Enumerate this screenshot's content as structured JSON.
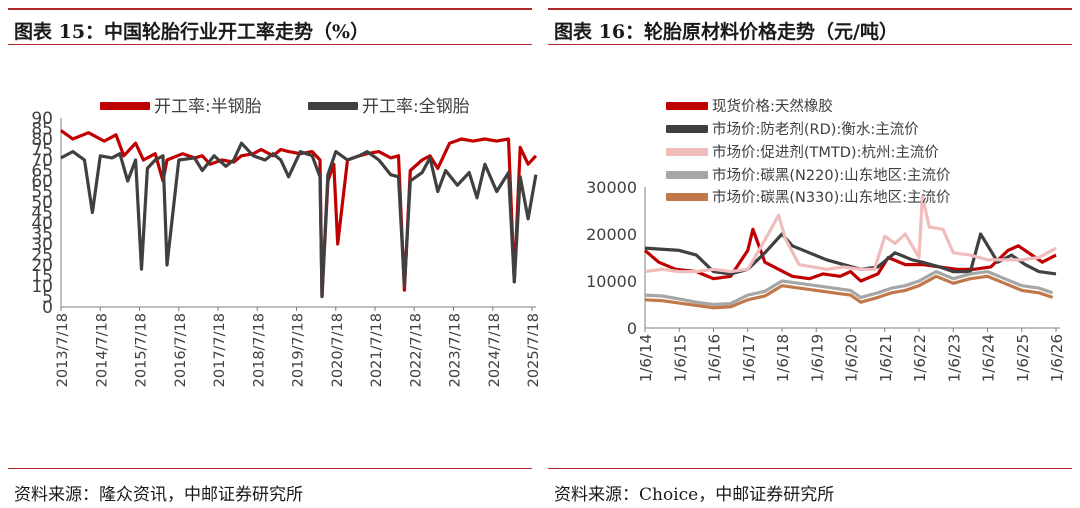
{
  "left": {
    "caption": "图表 15：中国轮胎行业开工率走势（%）",
    "source": "资料来源：隆众资讯，中邮证券研究所"
  },
  "right": {
    "caption": "图表 16：轮胎原材料价格走势（元/吨）",
    "source": "资料来源：Choice，中邮证券研究所"
  },
  "chart_data": [
    {
      "type": "line",
      "title": "",
      "ylim": [
        0,
        90
      ],
      "yticks": [
        "0",
        "5",
        "10",
        "15",
        "20",
        "25",
        "30",
        "35",
        "40",
        "45",
        "50",
        "55",
        "60",
        "65",
        "70",
        "75",
        "80",
        "85",
        "90"
      ],
      "x_tick_labels": [
        "2013/7/18",
        "2014/7/18",
        "2015/7/18",
        "2016/7/18",
        "2017/7/18",
        "2018/7/18",
        "2019/7/18",
        "2020/7/18",
        "2021/7/18",
        "2022/7/18",
        "2023/7/18",
        "2024/7/18",
        "2025/7/18"
      ],
      "legend_position": "top",
      "series": [
        {
          "name": "开工率:半钢胎",
          "color": "#c00000",
          "x": [
            2013.5,
            2013.8,
            2014.2,
            2014.6,
            2014.9,
            2015.1,
            2015.4,
            2015.6,
            2015.9,
            2016.1,
            2016.2,
            2016.6,
            2016.9,
            2017.1,
            2017.3,
            2017.6,
            2017.9,
            2018.1,
            2018.4,
            2018.6,
            2018.9,
            2019.1,
            2019.3,
            2019.6,
            2019.9,
            2020.1,
            2020.15,
            2020.3,
            2020.45,
            2020.55,
            2020.8,
            2021.1,
            2021.3,
            2021.6,
            2021.9,
            2022.1,
            2022.25,
            2022.4,
            2022.7,
            2022.9,
            2023.1,
            2023.4,
            2023.7,
            2024.0,
            2024.3,
            2024.6,
            2024.9,
            2025.05,
            2025.2,
            2025.4,
            2025.6
          ],
          "y": [
            84,
            80,
            83,
            79,
            82,
            72,
            78,
            70,
            73,
            60,
            70,
            73,
            71,
            72,
            68,
            70,
            69,
            72,
            73,
            75,
            72,
            75,
            74,
            73,
            74,
            70,
            5,
            60,
            68,
            30,
            70,
            72,
            73,
            74,
            71,
            72,
            8,
            65,
            70,
            72,
            66,
            78,
            80,
            79,
            80,
            79,
            80,
            12,
            76,
            68,
            72
          ]
        },
        {
          "name": "开工率:全钢胎",
          "color": "#404040",
          "x": [
            2013.5,
            2013.8,
            2014.1,
            2014.3,
            2014.5,
            2014.8,
            2015.0,
            2015.2,
            2015.4,
            2015.55,
            2015.7,
            2015.9,
            2016.1,
            2016.2,
            2016.5,
            2016.9,
            2017.1,
            2017.4,
            2017.7,
            2017.9,
            2018.1,
            2018.4,
            2018.7,
            2018.9,
            2019.1,
            2019.3,
            2019.6,
            2019.9,
            2020.1,
            2020.15,
            2020.3,
            2020.5,
            2020.8,
            2021.1,
            2021.3,
            2021.6,
            2021.9,
            2022.1,
            2022.25,
            2022.4,
            2022.7,
            2022.9,
            2023.1,
            2023.3,
            2023.6,
            2023.9,
            2024.1,
            2024.3,
            2024.6,
            2024.9,
            2025.05,
            2025.2,
            2025.4,
            2025.6
          ],
          "y": [
            71,
            74,
            70,
            45,
            72,
            71,
            73,
            60,
            70,
            18,
            66,
            70,
            72,
            20,
            70,
            71,
            65,
            72,
            67,
            70,
            78,
            72,
            70,
            73,
            70,
            62,
            74,
            72,
            62,
            5,
            63,
            74,
            70,
            72,
            74,
            70,
            63,
            62,
            10,
            60,
            64,
            71,
            55,
            65,
            58,
            64,
            52,
            68,
            55,
            64,
            12,
            62,
            42,
            63
          ]
        }
      ]
    },
    {
      "type": "line",
      "title": "",
      "ylim": [
        0,
        30000
      ],
      "yticks": [
        "0",
        "10000",
        "20000",
        "30000"
      ],
      "x_tick_labels": [
        "1/6/14",
        "1/6/15",
        "1/6/16",
        "1/6/17",
        "1/6/18",
        "1/6/19",
        "1/6/20",
        "1/6/21",
        "1/6/22",
        "1/6/23",
        "1/6/24",
        "1/6/25",
        "1/6/26"
      ],
      "legend_position": "top",
      "series": [
        {
          "name": "现货价格:天然橡胶",
          "color": "#c00000",
          "x": [
            2014.0,
            2014.4,
            2014.9,
            2015.5,
            2016.0,
            2016.5,
            2017.0,
            2017.15,
            2017.5,
            2017.9,
            2018.3,
            2018.8,
            2019.2,
            2019.7,
            2020.0,
            2020.3,
            2020.8,
            2021.1,
            2021.6,
            2022.1,
            2022.6,
            2023.1,
            2023.6,
            2024.1,
            2024.6,
            2024.9,
            2025.2,
            2025.6,
            2026.0
          ],
          "y": [
            16500,
            14000,
            12500,
            12000,
            10500,
            11000,
            16500,
            21000,
            14000,
            12500,
            11000,
            10500,
            11500,
            11000,
            12000,
            10000,
            11500,
            15000,
            13500,
            13500,
            13000,
            12500,
            12500,
            13000,
            16500,
            17500,
            16000,
            14000,
            15500
          ]
        },
        {
          "name": "市场价:防老剂(RD):衡水:主流价",
          "color": "#404040",
          "x": [
            2014.0,
            2015.0,
            2015.5,
            2016.0,
            2016.5,
            2017.0,
            2017.5,
            2018.0,
            2018.3,
            2018.8,
            2019.3,
            2019.8,
            2020.3,
            2020.8,
            2021.3,
            2021.8,
            2022.1,
            2022.6,
            2023.0,
            2023.5,
            2023.8,
            2024.3,
            2024.7,
            2025.1,
            2025.5,
            2026.0
          ],
          "y": [
            17000,
            16500,
            15500,
            12000,
            11500,
            12500,
            16000,
            20000,
            17500,
            16000,
            14500,
            13500,
            12500,
            13000,
            16000,
            14500,
            14000,
            13000,
            12000,
            12000,
            20000,
            14000,
            15500,
            13500,
            12000,
            11500
          ]
        },
        {
          "name": "市场价:促进剂(TMTD):杭州:主流价",
          "color": "#f0bcbc",
          "x": [
            2014.0,
            2014.5,
            2015.0,
            2015.5,
            2016.0,
            2016.5,
            2017.0,
            2017.6,
            2017.9,
            2018.1,
            2018.5,
            2018.9,
            2019.3,
            2019.8,
            2020.3,
            2020.7,
            2021.0,
            2021.3,
            2021.6,
            2022.0,
            2022.1,
            2022.3,
            2022.7,
            2023.0,
            2023.5,
            2024.0,
            2024.5,
            2025.0,
            2025.5,
            2026.0
          ],
          "y": [
            12000,
            12500,
            12000,
            12000,
            12500,
            12000,
            12500,
            20000,
            24000,
            19000,
            13500,
            13000,
            12500,
            13000,
            12500,
            12500,
            19500,
            18000,
            20000,
            15000,
            28000,
            21500,
            21000,
            16000,
            15500,
            14500,
            14500,
            14500,
            15000,
            17000
          ]
        },
        {
          "name": "市场价:碳黑(N220):山东地区:主流价",
          "color": "#a6a6a6",
          "x": [
            2014.0,
            2014.5,
            2015.0,
            2015.5,
            2016.0,
            2016.5,
            2017.0,
            2017.5,
            2018.0,
            2018.5,
            2019.0,
            2019.5,
            2020.0,
            2020.3,
            2020.8,
            2021.2,
            2021.6,
            2022.0,
            2022.5,
            2023.0,
            2023.5,
            2024.0,
            2024.5,
            2025.0,
            2025.5,
            2025.9
          ],
          "y": [
            7000,
            6800,
            6200,
            5500,
            5000,
            5200,
            7000,
            7800,
            10000,
            9500,
            9000,
            8500,
            8000,
            6500,
            7500,
            8500,
            9000,
            10000,
            12000,
            10500,
            11500,
            12000,
            10500,
            9000,
            8500,
            7500
          ]
        },
        {
          "name": "市场价:碳黑(N330):山东地区:主流价",
          "color": "#c0784a",
          "x": [
            2014.0,
            2014.5,
            2015.0,
            2015.5,
            2016.0,
            2016.5,
            2017.0,
            2017.5,
            2018.0,
            2018.5,
            2019.0,
            2019.5,
            2020.0,
            2020.3,
            2020.8,
            2021.2,
            2021.6,
            2022.0,
            2022.5,
            2023.0,
            2023.5,
            2024.0,
            2024.5,
            2025.0,
            2025.5,
            2025.9
          ],
          "y": [
            6000,
            5800,
            5300,
            4800,
            4300,
            4500,
            6000,
            6800,
            9000,
            8500,
            8000,
            7500,
            7000,
            5500,
            6500,
            7500,
            8000,
            9000,
            11000,
            9500,
            10500,
            11000,
            9500,
            8000,
            7500,
            6500
          ]
        }
      ]
    }
  ]
}
